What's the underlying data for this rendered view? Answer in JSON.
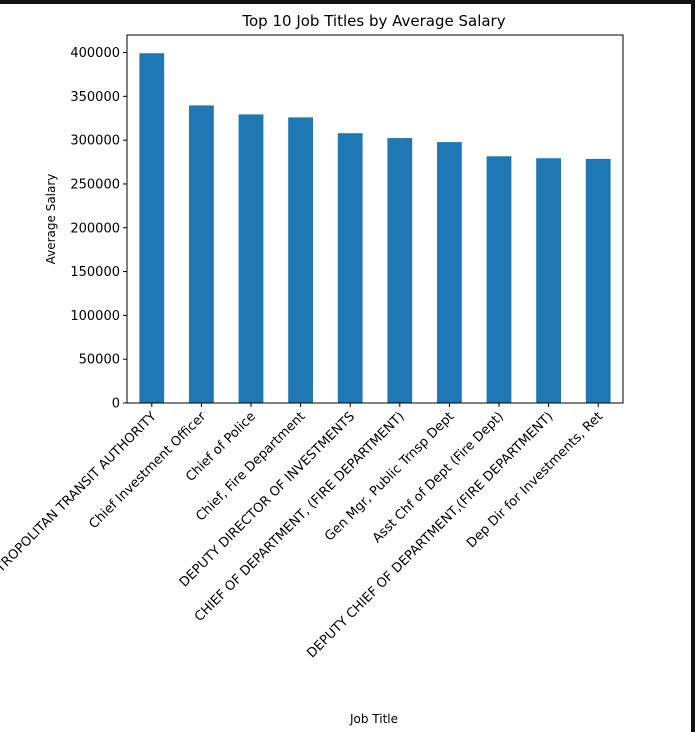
{
  "chart_data": {
    "type": "bar",
    "title": "Top 10 Job Titles by Average Salary",
    "xlabel": "Job Title",
    "ylabel": "Average Salary",
    "ylim": [
      0,
      420000
    ],
    "yticks": [
      0,
      50000,
      100000,
      150000,
      200000,
      250000,
      300000,
      350000,
      400000
    ],
    "grid": false,
    "legend": "none",
    "bar_color": "#1f77b4",
    "categories": [
      "GENERAL MANAGER-METROPOLITAN TRANSIT AUTHORITY",
      "Chief Investment Officer",
      "Chief of Police",
      "Chief, Fire Department",
      "DEPUTY DIRECTOR OF INVESTMENTS",
      "CHIEF OF DEPARTMENT, (FIRE DEPARTMENT)",
      "Gen Mgr, Public Trnsp Dept",
      "Asst Chf of Dept (Fire Dept)",
      "DEPUTY CHIEF OF DEPARTMENT,(FIRE DEPARTMENT)",
      "Dep Dir for Investments, Ret"
    ],
    "values": [
      399211,
      339653,
      329389,
      325971,
      307899,
      302377,
      297769,
      281572,
      279360,
      278593
    ]
  }
}
